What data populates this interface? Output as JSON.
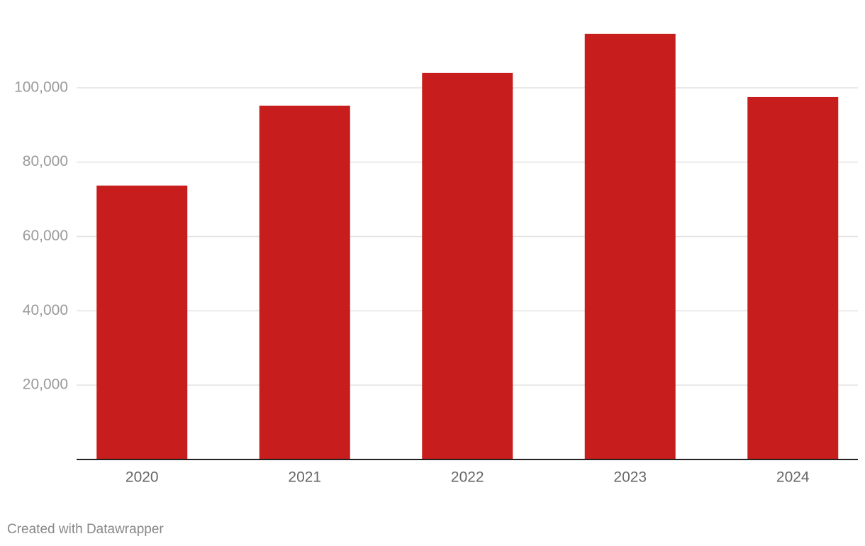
{
  "chart_data": {
    "type": "bar",
    "categories": [
      "2020",
      "2021",
      "2022",
      "2023",
      "2024"
    ],
    "values": [
      73700,
      95200,
      104000,
      114500,
      97500
    ],
    "color": "#c71e1d",
    "ylim": [
      0,
      120000
    ],
    "yticks": [
      {
        "value": 20000,
        "label": "20,000"
      },
      {
        "value": 40000,
        "label": "40,000"
      },
      {
        "value": 60000,
        "label": "60,000"
      },
      {
        "value": 80000,
        "label": "80,000"
      },
      {
        "value": 100000,
        "label": "100,000"
      }
    ],
    "grid": true,
    "credit": "Created with Datawrapper"
  }
}
